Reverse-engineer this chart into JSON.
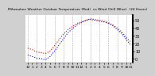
{
  "title": "Milwaukee Weather Outdoor Temperature (Red)  vs Wind Chill (Blue)  (24 Hours)",
  "title_fontsize": 3.2,
  "background_color": "#d0d0d0",
  "plot_bg_color": "#ffffff",
  "x_hours": [
    0,
    1,
    2,
    3,
    4,
    5,
    6,
    7,
    8,
    9,
    10,
    11,
    12,
    13,
    14,
    15,
    16,
    17,
    18,
    19,
    20,
    21,
    22,
    23
  ],
  "temp_red": [
    14,
    12,
    9,
    8,
    7,
    10,
    17,
    25,
    32,
    38,
    42,
    46,
    48,
    50,
    52,
    51,
    50,
    49,
    47,
    44,
    40,
    35,
    28,
    22
  ],
  "wind_chill_blue": [
    5,
    3,
    1,
    0,
    -1,
    3,
    10,
    18,
    26,
    34,
    39,
    44,
    47,
    50,
    51,
    50,
    49,
    48,
    46,
    43,
    38,
    33,
    25,
    18
  ],
  "ylim": [
    -5,
    57
  ],
  "ytick_values": [
    0,
    10,
    20,
    30,
    40,
    50
  ],
  "ytick_labels": [
    "0",
    "10",
    "20",
    "30",
    "40",
    "50"
  ],
  "ylabel_fontsize": 3.5,
  "xlabel_fontsize": 3.2,
  "x_tick_labels": [
    "12",
    "1",
    "2",
    "3",
    "4",
    "5",
    "6",
    "7",
    "8",
    "9",
    "10",
    "11",
    "12",
    "1",
    "2",
    "3",
    "4",
    "5",
    "6",
    "7",
    "8",
    "9",
    "10",
    "11"
  ],
  "grid_color": "#aaaaaa",
  "red_color": "#dd0000",
  "blue_color": "#0000ee",
  "interp_points": 200
}
